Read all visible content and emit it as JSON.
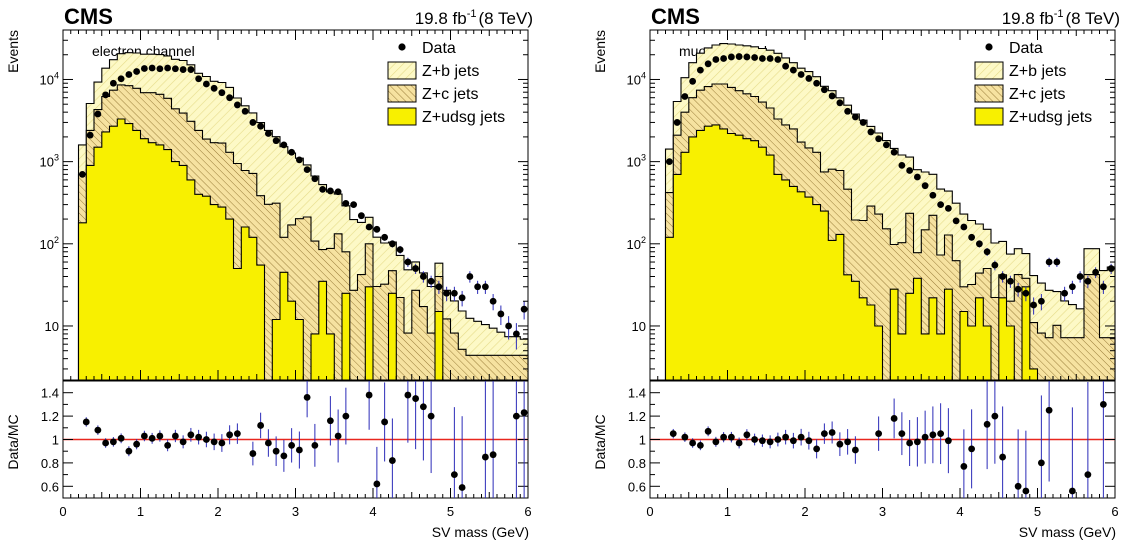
{
  "chart_data": [
    {
      "type": "bar",
      "experiment": "CMS",
      "luminosity": "19.8 fb",
      "lumi_exponent": "-1",
      "energy": "(8 TeV)",
      "channel_label": "electron channel",
      "xlabel": "SV mass (GeV)",
      "ylabel": "Events",
      "ratio_ylabel": "Data/MC",
      "xlim": [
        0,
        6
      ],
      "ylim": [
        2.2,
        40000
      ],
      "ylog": true,
      "ratio_ylim": [
        0.5,
        1.5
      ],
      "bin_width": 0.1,
      "x_ticks": [
        "0",
        "1",
        "2",
        "3",
        "4",
        "5",
        "6"
      ],
      "y_ticks": [
        {
          "v": 10,
          "base": "10",
          "exp": ""
        },
        {
          "v": 100,
          "base": "10",
          "exp": "2"
        },
        {
          "v": 1000,
          "base": "10",
          "exp": "3"
        },
        {
          "v": 10000,
          "base": "10",
          "exp": "4"
        }
      ],
      "ratio_ticks": [
        "0.6",
        "0.8",
        "1",
        "1.2",
        "1.4"
      ],
      "legend": [
        {
          "key": "data",
          "label": "Data"
        },
        {
          "key": "b",
          "label": "Z+b jets"
        },
        {
          "key": "c",
          "label": "Z+c jets"
        },
        {
          "key": "udsg",
          "label": "Z+udsg jets"
        }
      ],
      "bin_edges": [
        0.2,
        0.3,
        0.4,
        0.5,
        0.6,
        0.7,
        0.8,
        0.9,
        1.0,
        1.1,
        1.2,
        1.3,
        1.4,
        1.5,
        1.6,
        1.7,
        1.8,
        1.9,
        2.0,
        2.1,
        2.2,
        2.3,
        2.4,
        2.5,
        2.6,
        2.7,
        2.8,
        2.9,
        3.0,
        3.1,
        3.2,
        3.3,
        3.4,
        3.5,
        3.6,
        3.7,
        3.8,
        3.9,
        4.0,
        4.1,
        4.2,
        4.3,
        4.4,
        4.5,
        4.6,
        4.7,
        4.8,
        4.9,
        5.0,
        5.1,
        5.2,
        5.3,
        5.4,
        5.5,
        5.6,
        5.7,
        5.8,
        5.9,
        6.0
      ],
      "series": [
        {
          "name": "Z+udsg jets",
          "values": [
            180,
            900,
            1500,
            2300,
            2700,
            3300,
            2900,
            2400,
            1900,
            1700,
            1600,
            1400,
            1000,
            900,
            600,
            400,
            380,
            300,
            280,
            200,
            50,
            160,
            120,
            55,
            2.2,
            12,
            45,
            20,
            12,
            2.2,
            8,
            35,
            8,
            2.2,
            25,
            2.2,
            2.2,
            30,
            2.2,
            2.2,
            25,
            2.2,
            2.2,
            2.2,
            2.2,
            2.2,
            15,
            2.2,
            2.2,
            2.2,
            2.2,
            2.2,
            2.2,
            2.2,
            2.2,
            2.2,
            2.2,
            2.2
          ]
        },
        {
          "name": "Z+c jets",
          "values": [
            520,
            1500,
            2800,
            3900,
            4700,
            5300,
            5500,
            5400,
            5000,
            5200,
            5000,
            4500,
            3400,
            3000,
            2500,
            2000,
            1500,
            1400,
            1400,
            1100,
            900,
            620,
            600,
            330,
            300,
            300,
            75,
            150,
            190,
            210,
            100,
            50,
            80,
            130,
            55,
            25,
            40,
            70,
            28,
            30,
            22,
            20,
            6,
            25,
            15,
            6,
            25,
            10,
            6,
            3,
            2.2,
            2.2,
            2.2,
            2.2,
            2.2,
            2.2,
            2.2,
            2.2
          ]
        },
        {
          "name": "Z+b jets",
          "values": [
            900,
            2700,
            5000,
            7500,
            10000,
            12000,
            12800,
            13200,
            13400,
            13400,
            13500,
            13400,
            13200,
            13100,
            12000,
            9500,
            9000,
            7800,
            7500,
            6700,
            5000,
            4000,
            3200,
            2600,
            2100,
            1700,
            1400,
            1100,
            900,
            700,
            560,
            440,
            340,
            270,
            210,
            170,
            140,
            110,
            90,
            70,
            58,
            50,
            40,
            33,
            27,
            22,
            18,
            15,
            12,
            10,
            8,
            7,
            6,
            5,
            4,
            3,
            3,
            2.5
          ]
        }
      ],
      "data_points": {
        "x": [
          0.25,
          0.35,
          0.45,
          0.55,
          0.65,
          0.75,
          0.85,
          0.95,
          1.05,
          1.15,
          1.25,
          1.35,
          1.45,
          1.55,
          1.65,
          1.75,
          1.85,
          1.95,
          2.05,
          2.15,
          2.25,
          2.35,
          2.45,
          2.55,
          2.65,
          2.75,
          2.85,
          2.95,
          3.05,
          3.15,
          3.25,
          3.35,
          3.45,
          3.55,
          3.65,
          3.75,
          3.85,
          3.95,
          4.05,
          4.15,
          4.25,
          4.35,
          4.45,
          4.55,
          4.65,
          4.75,
          4.85,
          4.95,
          5.05,
          5.15,
          5.25,
          5.35,
          5.45,
          5.55,
          5.65,
          5.75,
          5.85,
          5.95
        ],
        "y": [
          700,
          2100,
          3800,
          6500,
          9000,
          10200,
          11500,
          12500,
          13600,
          13800,
          13500,
          13800,
          13500,
          13200,
          13200,
          10200,
          8800,
          7800,
          6900,
          6000,
          4900,
          4100,
          3000,
          2700,
          2200,
          1800,
          1600,
          1300,
          1050,
          800,
          620,
          460,
          440,
          430,
          310,
          300,
          220,
          160,
          150,
          120,
          100,
          85,
          60,
          50,
          40,
          35,
          30,
          25,
          25,
          22,
          40,
          30,
          30,
          20,
          14,
          10,
          8,
          16
        ],
        "ratio": [
          1.15,
          1.08,
          0.97,
          0.98,
          1.01,
          0.9,
          0.96,
          1.03,
          1.01,
          1.03,
          0.95,
          1.03,
          0.98,
          1.04,
          1.02,
          1.0,
          0.98,
          0.97,
          1.04,
          1.05,
          0.88,
          1.12,
          0.97,
          0.9,
          0.86,
          0.95,
          0.91,
          1.36,
          0.95,
          1.16,
          1.03,
          1.2,
          1.38,
          0.62,
          1.15,
          0.82,
          1.38,
          1.35,
          1.28,
          1.2,
          0.7,
          0.59,
          0.85,
          0.87,
          1.2,
          1.23
        ],
        "ratio_x": [
          0.3,
          0.45,
          0.55,
          0.65,
          0.75,
          0.85,
          0.95,
          1.05,
          1.15,
          1.25,
          1.35,
          1.45,
          1.55,
          1.65,
          1.75,
          1.85,
          1.95,
          2.05,
          2.15,
          2.25,
          2.45,
          2.55,
          2.65,
          2.75,
          2.85,
          2.95,
          3.05,
          3.15,
          3.25,
          3.45,
          3.55,
          3.65,
          3.95,
          4.05,
          4.15,
          4.25,
          4.45,
          4.55,
          4.65,
          4.75,
          5.05,
          5.15,
          5.45,
          5.55,
          5.85,
          5.95
        ]
      }
    },
    {
      "type": "bar",
      "experiment": "CMS",
      "luminosity": "19.8 fb",
      "lumi_exponent": "-1",
      "energy": "(8 TeV)",
      "channel_label": "muon channel",
      "xlabel": "SV mass (GeV)",
      "ylabel": "Events",
      "ratio_ylabel": "Data/MC",
      "xlim": [
        0,
        6
      ],
      "ylim": [
        2.2,
        40000
      ],
      "ylog": true,
      "ratio_ylim": [
        0.5,
        1.5
      ],
      "bin_width": 0.1,
      "x_ticks": [
        "0",
        "1",
        "2",
        "3",
        "4",
        "5",
        "6"
      ],
      "y_ticks": [
        {
          "v": 10,
          "base": "10",
          "exp": ""
        },
        {
          "v": 100,
          "base": "10",
          "exp": "2"
        },
        {
          "v": 1000,
          "base": "10",
          "exp": "3"
        },
        {
          "v": 10000,
          "base": "10",
          "exp": "4"
        }
      ],
      "ratio_ticks": [
        "0.6",
        "0.8",
        "1",
        "1.2",
        "1.4"
      ],
      "legend": [
        {
          "key": "data",
          "label": "Data"
        },
        {
          "key": "b",
          "label": "Z+b jets"
        },
        {
          "key": "c",
          "label": "Z+c jets"
        },
        {
          "key": "udsg",
          "label": "Z+udsg jets"
        }
      ],
      "bin_edges": [
        0.2,
        0.3,
        0.4,
        0.5,
        0.6,
        0.7,
        0.8,
        0.9,
        1.0,
        1.1,
        1.2,
        1.3,
        1.4,
        1.5,
        1.6,
        1.7,
        1.8,
        1.9,
        2.0,
        2.1,
        2.2,
        2.3,
        2.4,
        2.5,
        2.6,
        2.7,
        2.8,
        2.9,
        3.0,
        3.1,
        3.2,
        3.3,
        3.4,
        3.5,
        3.6,
        3.7,
        3.8,
        3.9,
        4.0,
        4.1,
        4.2,
        4.3,
        4.4,
        4.5,
        4.6,
        4.7,
        4.8,
        4.9,
        5.0,
        5.1,
        5.2,
        5.3,
        5.4,
        5.5,
        5.6,
        5.7,
        5.8,
        5.9,
        6.0
      ],
      "series": [
        {
          "name": "Z+udsg jets",
          "values": [
            120,
            700,
            1300,
            2000,
            2400,
            2700,
            2800,
            2500,
            2200,
            2100,
            1900,
            1800,
            1500,
            1200,
            700,
            600,
            500,
            430,
            370,
            300,
            250,
            110,
            130,
            42,
            35,
            22,
            18,
            10,
            2.2,
            28,
            8,
            25,
            38,
            8,
            22,
            8,
            28,
            2.2,
            15,
            10,
            22,
            10,
            2.2,
            22,
            10,
            2.2,
            30,
            3,
            2.2,
            2.2,
            2.2,
            2.2,
            2.2,
            2.2,
            2.2,
            2.2,
            2.2,
            2.2
          ]
        },
        {
          "name": "Z+c jets",
          "values": [
            300,
            1400,
            2700,
            4000,
            5000,
            5500,
            6000,
            6300,
            5800,
            5200,
            4800,
            4400,
            3800,
            3300,
            2600,
            2200,
            2000,
            1300,
            1100,
            1000,
            500,
            700,
            650,
            420,
            160,
            170,
            270,
            220,
            150,
            70,
            95,
            210,
            40,
            140,
            200,
            65,
            100,
            60,
            15,
            22,
            22,
            40,
            20,
            20,
            10,
            40,
            8,
            8,
            6,
            5,
            8,
            5,
            5,
            5,
            40,
            40,
            5,
            5
          ]
        },
        {
          "name": "Z+b jets",
          "values": [
            1000,
            3300,
            6500,
            10000,
            13500,
            16000,
            17500,
            18500,
            19000,
            19000,
            19000,
            18800,
            18500,
            18200,
            17500,
            15500,
            13500,
            12000,
            11000,
            9500,
            7500,
            6500,
            5200,
            4400,
            3600,
            3000,
            2400,
            2000,
            1650,
            1350,
            1100,
            900,
            720,
            600,
            480,
            390,
            310,
            250,
            200,
            160,
            130,
            100,
            80,
            65,
            55,
            45,
            38,
            30,
            25,
            20,
            16,
            13,
            11,
            9,
            45,
            45,
            40,
            45
          ]
        }
      ],
      "data_points": {
        "x": [
          0.25,
          0.35,
          0.45,
          0.55,
          0.65,
          0.75,
          0.85,
          0.95,
          1.05,
          1.15,
          1.25,
          1.35,
          1.45,
          1.55,
          1.65,
          1.75,
          1.85,
          1.95,
          2.05,
          2.15,
          2.25,
          2.35,
          2.45,
          2.55,
          2.65,
          2.75,
          2.85,
          2.95,
          3.05,
          3.15,
          3.25,
          3.35,
          3.45,
          3.55,
          3.65,
          3.75,
          3.85,
          3.95,
          4.05,
          4.15,
          4.25,
          4.35,
          4.45,
          4.55,
          4.65,
          4.75,
          4.85,
          4.95,
          5.05,
          5.15,
          5.25,
          5.35,
          5.45,
          5.55,
          5.65,
          5.75,
          5.85,
          5.95
        ],
        "y": [
          1000,
          3000,
          6200,
          9500,
          13000,
          15500,
          17500,
          18000,
          18800,
          19000,
          18800,
          18500,
          18000,
          18000,
          17500,
          14500,
          13000,
          11500,
          10300,
          9000,
          7500,
          6300,
          5200,
          4100,
          3500,
          3000,
          2300,
          1900,
          1600,
          1300,
          900,
          780,
          650,
          510,
          390,
          300,
          270,
          190,
          160,
          120,
          100,
          80,
          55,
          40,
          35,
          28,
          25,
          18,
          20,
          60,
          60,
          25,
          30,
          40,
          35,
          45,
          30,
          50
        ],
        "ratio": [
          1.05,
          1.02,
          0.97,
          0.95,
          1.07,
          0.98,
          1.02,
          1.02,
          0.97,
          1.04,
          1.0,
          0.99,
          0.98,
          1.0,
          1.02,
          0.99,
          1.02,
          0.99,
          0.92,
          1.05,
          1.06,
          0.96,
          0.98,
          0.91,
          1.05,
          1.18,
          1.05,
          0.97,
          0.98,
          1.02,
          1.04,
          1.05,
          0.99,
          0.77,
          0.92,
          1.13,
          1.2,
          0.85,
          0.6,
          0.56,
          0.8,
          1.25,
          0.56,
          0.7,
          1.3
        ],
        "ratio_x": [
          0.3,
          0.45,
          0.55,
          0.65,
          0.75,
          0.85,
          0.95,
          1.05,
          1.15,
          1.25,
          1.35,
          1.45,
          1.55,
          1.65,
          1.75,
          1.85,
          1.95,
          2.05,
          2.15,
          2.25,
          2.35,
          2.45,
          2.55,
          2.65,
          2.95,
          3.15,
          3.25,
          3.35,
          3.45,
          3.55,
          3.65,
          3.75,
          3.85,
          4.05,
          4.15,
          4.35,
          4.45,
          4.55,
          4.75,
          4.85,
          5.05,
          5.15,
          5.45,
          5.65,
          5.85
        ]
      }
    }
  ]
}
